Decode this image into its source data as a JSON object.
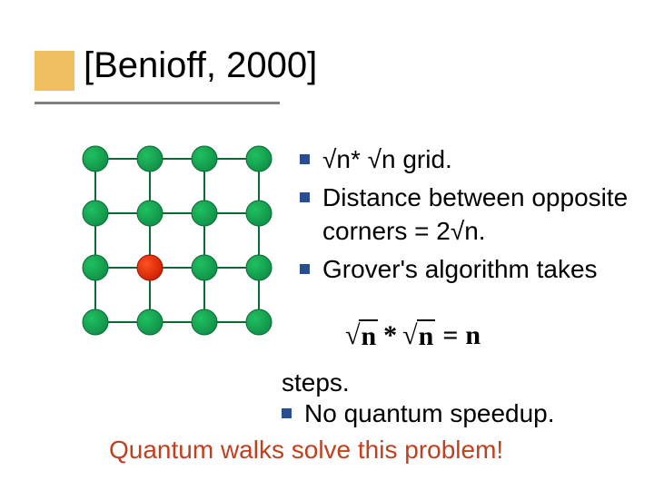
{
  "title": "[Benioff, 2000]",
  "accent_color": "#f0c060",
  "rule_color": "#808080",
  "bullet_marker_color": "#2a4d8f",
  "bullets_top": [
    "√n* √n grid.",
    "Distance between opposite corners = 2√n.",
    "Grover's algorithm takes"
  ],
  "formula": {
    "left_arg": "n",
    "op": "*",
    "right_arg": "n",
    "eq": "=",
    "rhs": "n"
  },
  "steps_label": "steps.",
  "bullets_bottom": [
    "No quantum speedup."
  ],
  "closing": "Quantum walks solve this problem!",
  "closing_color": "#c04020",
  "grid": {
    "rows": 4,
    "cols": 4,
    "spacing": 60,
    "node_radius": 14,
    "node_fill1": "#20c060",
    "node_fill2": "#109048",
    "node_stroke": "#0a6a34",
    "line_color": "#0a6a34",
    "line_width": 2,
    "highlight": {
      "row": 2,
      "col": 1,
      "fill1": "#ff5020",
      "fill2": "#cc2000",
      "stroke": "#a01000"
    }
  }
}
